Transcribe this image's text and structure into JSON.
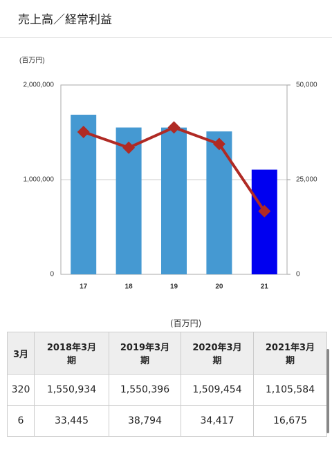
{
  "header": {
    "title": "売上高／経常利益"
  },
  "chart_data": {
    "type": "bar",
    "y_unit_label": "(百万円)",
    "categories": [
      "17",
      "18",
      "19",
      "20",
      "21"
    ],
    "series": [
      {
        "type": "bar",
        "colors": [
          "#4599d2",
          "#4599d2",
          "#4599d2",
          "#4599d2",
          "#0000f0"
        ],
        "values": [
          1686000,
          1550934,
          1550396,
          1509454,
          1105584
        ]
      },
      {
        "type": "line",
        "axis": "y2",
        "color": "#b02a24",
        "values": [
          37600,
          33445,
          38794,
          34417,
          16675
        ]
      }
    ],
    "ylim": [
      0,
      2000000
    ],
    "yticks": [
      0,
      {
        "value": 1000000,
        "label": "1,000,000"
      },
      {
        "value": 2000000,
        "label": "2,000,000"
      }
    ],
    "y2lim": [
      0,
      50000
    ],
    "y2ticks": [
      0,
      {
        "value": 25000,
        "label": "25,000"
      },
      {
        "value": 50000,
        "label": "50,000"
      }
    ],
    "grid": true
  },
  "table": {
    "unit_label": "(百万円)",
    "header": [
      "3月",
      "2018年3月期",
      "2019年3月期",
      "2020年3月期",
      "2021年3月期"
    ],
    "rows": [
      [
        "320",
        "1,550,934",
        "1,550,396",
        "1,509,454",
        "1,105,584"
      ],
      [
        "6",
        "33,445",
        "38,794",
        "34,417",
        "16,675"
      ]
    ]
  }
}
